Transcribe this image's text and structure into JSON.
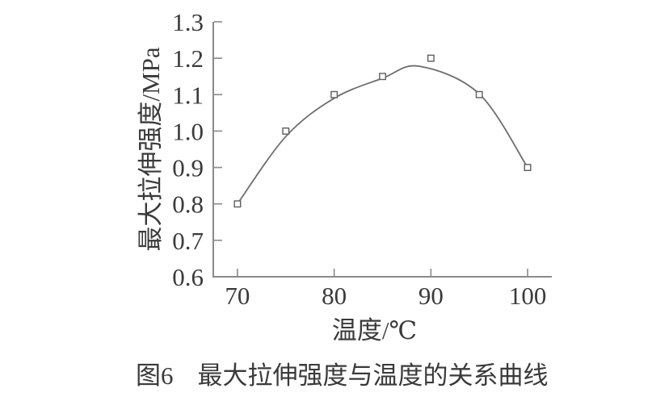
{
  "caption": {
    "label": "图6",
    "title": "最大拉伸强度与温度的关系曲线"
  },
  "chart_data": {
    "type": "line",
    "title": "",
    "xlabel": "温度/℃",
    "ylabel": "最大拉伸强度/MPa",
    "x": [
      70,
      75,
      80,
      85,
      90,
      95,
      100
    ],
    "y": [
      0.8,
      1.0,
      1.1,
      1.15,
      1.2,
      1.1,
      0.9
    ],
    "series_name": "最大拉伸强度",
    "xlim": [
      67.5,
      102.5
    ],
    "ylim": [
      0.6,
      1.3
    ],
    "x_ticks": [
      70,
      80,
      90,
      100
    ],
    "y_ticks": [
      0.6,
      0.7,
      0.8,
      0.9,
      1.0,
      1.1,
      1.2,
      1.3
    ],
    "grid": false,
    "legend": false,
    "marker": "open-square",
    "curve_fit": [
      [
        70,
        0.8
      ],
      [
        75,
        0.985
      ],
      [
        80,
        1.09
      ],
      [
        85,
        1.145
      ],
      [
        88.8,
        1.178
      ],
      [
        95,
        1.102
      ],
      [
        100,
        0.9
      ]
    ],
    "colors": {
      "axis": "#8a8a8a",
      "curve": "#6e6e6e",
      "marker_stroke": "#5e5e5e",
      "marker_fill": "#ffffff",
      "text": "#3a3a3a",
      "background": "#ffffff"
    }
  }
}
